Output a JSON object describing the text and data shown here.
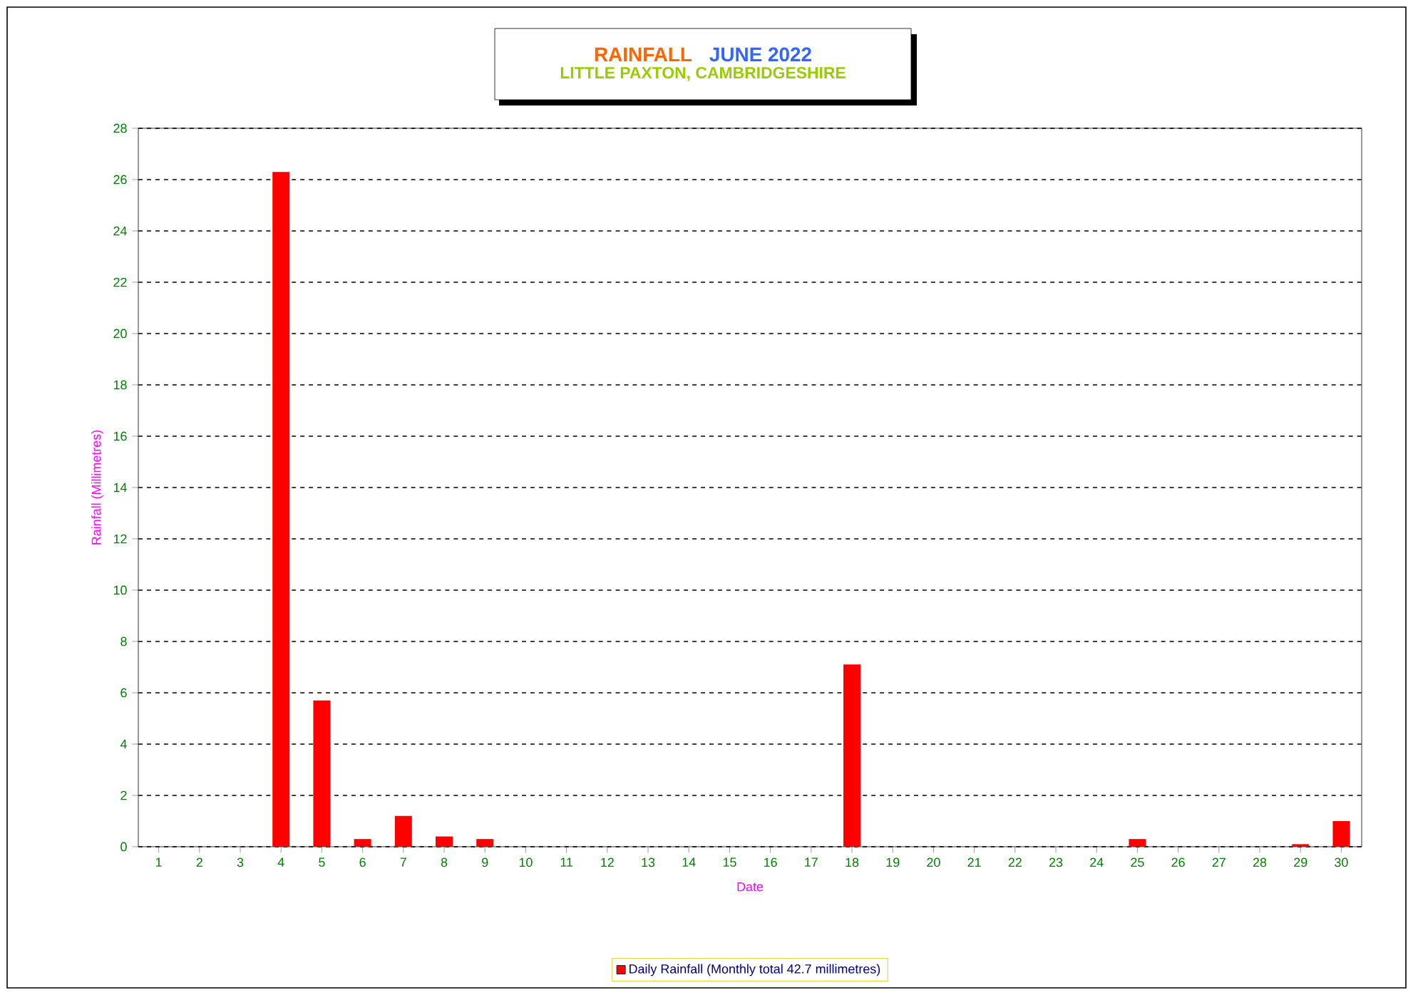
{
  "chart_data": {
    "type": "bar",
    "title": "RAINFALL",
    "subtitle": "JUNE 2022",
    "annotations": [
      "LITTLE PAXTON, CAMBRIDGESHIRE"
    ],
    "xlabel": "Date",
    "ylabel": "Rainfall  (Millimetres)",
    "categories": [
      "1",
      "2",
      "3",
      "4",
      "5",
      "6",
      "7",
      "8",
      "9",
      "10",
      "11",
      "12",
      "13",
      "14",
      "15",
      "16",
      "17",
      "18",
      "19",
      "20",
      "21",
      "22",
      "23",
      "24",
      "25",
      "26",
      "27",
      "28",
      "29",
      "30"
    ],
    "series": [
      {
        "name": "Daily Rainfall (Monthly total 42.7 millimetres)",
        "color": "#ff0000",
        "values": [
          0,
          0,
          0,
          26.3,
          5.7,
          0.3,
          1.2,
          0.4,
          0.3,
          0,
          0,
          0,
          0,
          0,
          0,
          0,
          0,
          7.1,
          0,
          0,
          0,
          0,
          0,
          0,
          0.3,
          0,
          0,
          0,
          0.1,
          1.0
        ]
      }
    ],
    "ylim": [
      0,
      28
    ],
    "yticks": [
      0,
      2,
      4,
      6,
      8,
      10,
      12,
      14,
      16,
      18,
      20,
      22,
      24,
      26,
      28
    ],
    "grid": "y",
    "legend": "bottom"
  }
}
